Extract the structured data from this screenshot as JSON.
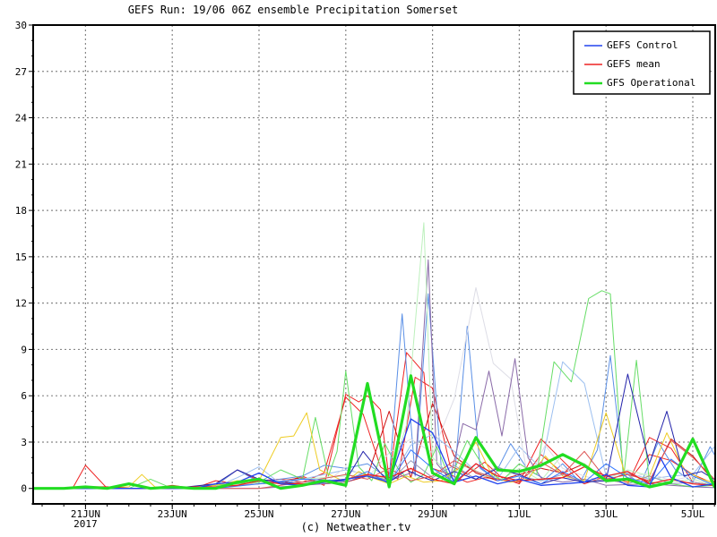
{
  "chart_data": {
    "type": "line",
    "title": "GEFS Run: 19/06 06Z ensemble Precipitation Somerset",
    "credit": "(c) Netweather.tv",
    "xlabel": "",
    "ylabel": "",
    "ylim": [
      -1,
      30
    ],
    "yticks": [
      0,
      3,
      6,
      9,
      12,
      15,
      18,
      21,
      24,
      27,
      30
    ],
    "x_unit": "days",
    "xlim": [
      0,
      16.5
    ],
    "xticks": [
      {
        "x": 1,
        "label": "21JUN",
        "sublabel": "2017"
      },
      {
        "x": 3,
        "label": "23JUN",
        "sublabel": ""
      },
      {
        "x": 5,
        "label": "25JUN",
        "sublabel": ""
      },
      {
        "x": 7,
        "label": "27JUN",
        "sublabel": ""
      },
      {
        "x": 9,
        "label": "29JUN",
        "sublabel": ""
      },
      {
        "x": 11,
        "label": "1JUL",
        "sublabel": ""
      },
      {
        "x": 13,
        "label": "3JUL",
        "sublabel": ""
      },
      {
        "x": 15,
        "label": "5JUL",
        "sublabel": ""
      }
    ],
    "grid": true,
    "legend_position": "top-right",
    "series": [
      {
        "name": "GEFS Control",
        "color": "#2244ee",
        "width": 1.3,
        "x": [
          -1.3,
          0,
          0.5,
          1,
          1.5,
          2,
          2.5,
          3,
          3.5,
          4,
          4.5,
          5,
          5.5,
          6,
          6.5,
          7,
          7.5,
          8,
          8.5,
          9,
          9.5,
          10,
          10.5,
          11,
          11.5,
          12,
          12.5,
          13,
          13.5,
          14,
          14.25,
          14.5,
          15,
          15.5,
          16,
          16.5
        ],
        "y": [
          0,
          0,
          0,
          0,
          0,
          0,
          0,
          0,
          0,
          0.3,
          0.4,
          1,
          0.3,
          0.2,
          0.4,
          0.6,
          0.8,
          0.4,
          4.5,
          3.6,
          0.4,
          0.8,
          0.3,
          0.6,
          0.2,
          0.3,
          0.4,
          0.9,
          0.2,
          0.1,
          2.0,
          0.7,
          0.1,
          0.3,
          0,
          0
        ]
      },
      {
        "name": "GEFS mean",
        "color": "#ee2222",
        "width": 1.3,
        "x": [
          -1.3,
          0,
          0.5,
          1,
          1.5,
          2,
          2.5,
          3,
          3.5,
          4,
          4.5,
          5,
          5.5,
          6,
          6.5,
          7,
          7.5,
          8,
          8.5,
          9,
          9.5,
          10,
          10.5,
          11,
          11.5,
          12,
          12.5,
          13,
          13.5,
          14,
          14.5,
          15,
          15.5,
          16,
          16.5
        ],
        "y": [
          0,
          0,
          0,
          0.1,
          0.1,
          0,
          0,
          0,
          0.1,
          0.1,
          0.2,
          0.5,
          0.3,
          0.3,
          0.4,
          0.6,
          0.9,
          0.7,
          1.3,
          0.6,
          0.3,
          1.6,
          0.8,
          0.5,
          0.6,
          0.7,
          1.4,
          0.8,
          1.1,
          0.3,
          0.6,
          0.3,
          0.2,
          0.2,
          0.1
        ]
      },
      {
        "name": "GFS Operational",
        "color": "#22dd22",
        "width": 3.2,
        "x": [
          -1.3,
          0,
          0.5,
          1,
          1.5,
          2,
          2.5,
          3,
          3.5,
          4,
          4.5,
          5,
          5.5,
          6,
          6.5,
          7,
          7.5,
          8,
          8.5,
          9,
          9.5,
          10,
          10.5,
          11,
          11.5,
          12,
          12.5,
          13,
          13.5,
          14,
          14.5,
          15,
          15.5,
          16,
          16.5
        ],
        "y": [
          0,
          0,
          0,
          0.1,
          0,
          0.3,
          0,
          0.1,
          0,
          0,
          0.4,
          0.6,
          0,
          0.2,
          0.5,
          0.2,
          6.8,
          0.1,
          7.3,
          1.0,
          0.3,
          3.3,
          1.2,
          1.1,
          1.5,
          2.2,
          1.5,
          0.5,
          0.6,
          0.1,
          0.4,
          3.2,
          0.1,
          0.1,
          0.1
        ]
      }
    ],
    "members": [
      {
        "color": "#ee2222",
        "x": [
          -1.3,
          0.3,
          0.7,
          1,
          1.5,
          2,
          2.5,
          3,
          3.5,
          4,
          4.5,
          5,
          5.5,
          6,
          6.5,
          7,
          7.3,
          7.5,
          7.8,
          8,
          8.4,
          8.8,
          9,
          9.4,
          9.8,
          10.2,
          10.6,
          11,
          11.5,
          12,
          12.5,
          13,
          13.5,
          14,
          14.5,
          15,
          15.5,
          16
        ],
        "y": [
          0,
          0,
          0,
          1.5,
          0,
          0.3,
          0,
          0.2,
          0,
          0.5,
          0.3,
          0.6,
          0.3,
          0.8,
          0.2,
          6.1,
          5.6,
          6.0,
          5.1,
          0.6,
          8.8,
          7.5,
          1.3,
          0.9,
          0.4,
          0.7,
          0.6,
          0.4,
          3.2,
          1.8,
          0.4,
          0.6,
          0.3,
          3.3,
          2.6,
          0.4,
          0.2,
          0
        ]
      },
      {
        "color": "#ee2222",
        "x": [
          -1.3,
          2,
          3,
          4,
          4.5,
          5,
          5.5,
          6,
          6.5,
          7,
          7.4,
          7.8,
          8.2,
          8.6,
          9,
          9.4,
          9.8,
          10.2,
          10.6,
          11,
          11.5,
          12,
          12.5,
          13,
          13.5,
          14,
          14.5,
          15,
          15.5,
          16
        ],
        "y": [
          0,
          0,
          0,
          0.2,
          1.2,
          0.5,
          0.6,
          0.4,
          1.0,
          5.9,
          4.8,
          1.4,
          0.6,
          7.2,
          6.5,
          1.5,
          0.9,
          1.7,
          0.7,
          0.3,
          2.2,
          1.0,
          0.3,
          0.8,
          0.4,
          2.2,
          1.8,
          0.9,
          0.3,
          0
        ]
      },
      {
        "color": "#cc1111",
        "x": [
          -1.3,
          3,
          4,
          5,
          6,
          6.5,
          7,
          7.5,
          8,
          8.5,
          9,
          9.5,
          10,
          10.5,
          11,
          11.5,
          12,
          12.5,
          13,
          13.5,
          14,
          14.5,
          15,
          15.5,
          16
        ],
        "y": [
          0,
          0,
          0.1,
          0.3,
          0.7,
          0.3,
          0.4,
          0.8,
          5.0,
          0.7,
          5.5,
          2.1,
          1.0,
          0.5,
          0.9,
          1.3,
          1.0,
          1.6,
          0.5,
          1.0,
          0.4,
          3.2,
          2.1,
          0.4,
          0
        ]
      },
      {
        "color": "#5a8fe6",
        "x": [
          -1.3,
          3,
          4,
          4.5,
          5,
          5.5,
          6,
          6.5,
          7,
          7.5,
          8,
          8.3,
          8.6,
          8.9,
          9.2,
          9.5,
          9.8,
          10.1,
          10.4,
          10.8,
          11.2,
          11.6,
          12,
          12.4,
          12.8,
          13.1,
          13.4,
          13.8,
          14.2,
          14.6,
          15,
          15.4,
          15.8,
          16.2,
          16.5
        ],
        "y": [
          0,
          0,
          0.2,
          1.2,
          0.4,
          0.6,
          0.8,
          1.5,
          1.3,
          1.6,
          0.6,
          11.3,
          0.8,
          12.6,
          1.4,
          0.5,
          10.5,
          1.3,
          0.7,
          2.9,
          1.2,
          0.6,
          1.6,
          0.4,
          2.5,
          8.6,
          1.1,
          0.3,
          3.0,
          1.2,
          0.4,
          2.7,
          0.6,
          0.3,
          0
        ]
      },
      {
        "color": "#9cbff0",
        "x": [
          -1.3,
          3,
          4,
          4.5,
          5,
          5.5,
          6,
          7,
          7.5,
          8,
          8.5,
          9,
          9.5,
          10,
          10.5,
          11,
          11.5,
          12,
          12.5,
          13,
          13.5,
          14,
          14.5,
          15,
          15.5,
          16,
          16.5
        ],
        "y": [
          0,
          0,
          0.1,
          0.7,
          1.4,
          0.3,
          0.6,
          1.2,
          0.9,
          0.4,
          2.8,
          3.5,
          2.4,
          1.1,
          0.6,
          2.7,
          1.3,
          8.2,
          6.8,
          0.8,
          1.0,
          0.6,
          0.8,
          0.9,
          2.7,
          0.4,
          0
        ]
      },
      {
        "color": "#dddde6",
        "x": [
          -1.3,
          4,
          5,
          6,
          6.5,
          7,
          7.5,
          8,
          8.5,
          9,
          9.5,
          10,
          10.4,
          10.8,
          11.2,
          11.6,
          12,
          12.5,
          13,
          13.5,
          14,
          14.5,
          15,
          15.5,
          16
        ],
        "y": [
          0,
          0,
          0.4,
          0.6,
          0.3,
          1.4,
          0.7,
          2.3,
          3.2,
          2.3,
          5.8,
          13.0,
          8.1,
          7.1,
          0.6,
          2.8,
          1.3,
          0.8,
          0.4,
          0.7,
          1.0,
          0.5,
          0.8,
          0.3,
          0
        ]
      },
      {
        "color": "#8a6aa8",
        "x": [
          -1.3,
          5,
          6,
          7,
          7.5,
          8,
          8.3,
          8.6,
          8.9,
          9.1,
          9.4,
          9.7,
          10,
          10.3,
          10.6,
          10.9,
          11.2,
          11.5,
          12,
          12.5,
          13,
          14,
          15,
          16
        ],
        "y": [
          0,
          0,
          0.2,
          0.4,
          0.9,
          0.5,
          0.8,
          1.1,
          14.8,
          1.6,
          0.6,
          4.2,
          3.8,
          7.6,
          3.4,
          8.4,
          2.0,
          0.7,
          0.4,
          0.6,
          0.2,
          0.3,
          0.1,
          0
        ]
      },
      {
        "color": "#bdf0bd",
        "x": [
          -1.3,
          4,
          5,
          6,
          7,
          7.5,
          8,
          8.4,
          8.8,
          9,
          9.4,
          9.8,
          10.2,
          10.6,
          11,
          11.5,
          12,
          12.5,
          13,
          13.5,
          14,
          14.5,
          15,
          15.5,
          16
        ],
        "y": [
          0,
          0,
          0.3,
          0.6,
          0.8,
          0.9,
          0.6,
          4.1,
          17.2,
          2.0,
          0.9,
          1.5,
          0.8,
          0.6,
          1.3,
          0.5,
          2.2,
          1.6,
          0.6,
          1.2,
          0.8,
          0.4,
          0.6,
          0.2,
          0
        ]
      },
      {
        "color": "#66dd66",
        "x": [
          -1.3,
          2,
          2.5,
          3,
          4,
          5,
          5.5,
          6,
          6.3,
          6.6,
          6.8,
          7,
          7.3,
          7.6,
          7.9,
          8.2,
          8.5,
          8.8,
          9.1,
          9.4,
          9.8,
          10.2,
          10.6,
          11,
          11.4,
          11.8,
          12.2,
          12.6,
          12.9,
          13.1,
          13.4,
          13.7,
          14,
          14.5,
          15,
          15.5,
          16
        ],
        "y": [
          0,
          0,
          0.6,
          0,
          0.2,
          0.4,
          1.2,
          0.6,
          4.6,
          0.8,
          2.4,
          7.6,
          1.4,
          0.5,
          2.9,
          1.3,
          0.4,
          0.9,
          2.7,
          0.6,
          3.1,
          1.3,
          0.5,
          1.6,
          0.9,
          8.2,
          6.9,
          12.3,
          12.8,
          12.6,
          0.6,
          8.3,
          0.4,
          0.3,
          0.1,
          0.2,
          0
        ]
      },
      {
        "color": "#eecc22",
        "x": [
          -1.3,
          1,
          2,
          2.3,
          2.6,
          3,
          4,
          4.5,
          5,
          5.5,
          5.8,
          6.1,
          6.4,
          6.7,
          7,
          7.3,
          7.6,
          8,
          8.4,
          8.8,
          9.2,
          9.6,
          10,
          10.4,
          10.8,
          11.2,
          11.6,
          12,
          12.5,
          13,
          13.5,
          14,
          14.4,
          14.8,
          15.2,
          15.6,
          16
        ],
        "y": [
          0,
          0,
          0.1,
          0.9,
          0.1,
          0,
          0.2,
          0.5,
          0.5,
          3.3,
          3.4,
          4.9,
          1.2,
          0.8,
          0.4,
          1.1,
          0.7,
          0.3,
          0.8,
          0.4,
          0.5,
          1.3,
          3.0,
          0.7,
          0.4,
          0.6,
          2.1,
          0.8,
          0.5,
          4.9,
          0.4,
          0.8,
          3.6,
          1.2,
          0.6,
          0.3,
          0
        ]
      },
      {
        "color": "#9999bb",
        "x": [
          -1.3,
          3,
          4,
          5,
          6,
          7,
          7.5,
          8,
          8.5,
          9,
          9.5,
          10,
          10.5,
          11,
          11.5,
          12,
          12.5,
          13,
          13.5,
          14,
          14.5,
          15,
          15.5,
          16
        ],
        "y": [
          0,
          0,
          0.1,
          0.3,
          0.4,
          0.6,
          0.9,
          0.4,
          1.8,
          0.7,
          1.5,
          0.6,
          1.4,
          0.8,
          0.5,
          0.9,
          0.4,
          0.6,
          0.3,
          0.8,
          0.3,
          0.4,
          0.2,
          0
        ]
      },
      {
        "color": "#2222aa",
        "x": [
          -1.3,
          3,
          4,
          4.5,
          5,
          5.5,
          6,
          7,
          7.4,
          7.8,
          8,
          8.4,
          8.7,
          9,
          9.5,
          10,
          10.5,
          11,
          11.5,
          12,
          12.5,
          13,
          13.5,
          14,
          14.4,
          14.8,
          15.2,
          15.6,
          16,
          16.5
        ],
        "y": [
          0,
          0,
          0.3,
          1.2,
          0.6,
          0.4,
          0.3,
          0.5,
          2.4,
          1.0,
          0.4,
          1.2,
          0.8,
          0.5,
          1.1,
          0.6,
          1.3,
          0.9,
          0.3,
          0.7,
          0.4,
          0.5,
          7.4,
          1.6,
          5.0,
          0.8,
          1.1,
          0.4,
          0.2,
          7.5
        ]
      },
      {
        "color": "#dd5555",
        "x": [
          -1.3,
          5,
          6,
          7,
          7.5,
          8,
          8.5,
          9,
          9.5,
          10,
          10.5,
          11,
          11.5,
          12,
          12.5,
          13,
          13.5,
          14,
          14.5,
          15,
          15.5,
          16,
          16.5
        ],
        "y": [
          0,
          0,
          0.4,
          0.9,
          0.6,
          1.3,
          0.5,
          0.8,
          1.8,
          1.1,
          0.6,
          0.4,
          1.7,
          0.9,
          2.4,
          0.6,
          0.9,
          0.5,
          3.1,
          2.0,
          0.6,
          0.3,
          1.2
        ]
      },
      {
        "color": "#3377ff",
        "x": [
          -1.3,
          4,
          5,
          6,
          7,
          7.5,
          8,
          8.5,
          9,
          9.5,
          10,
          10.5,
          11,
          11.5,
          12,
          12.5,
          13,
          13.5,
          14,
          14.5,
          15,
          15.5,
          16
        ],
        "y": [
          0,
          0,
          0.3,
          0.6,
          0.5,
          1.1,
          0.3,
          2.5,
          1.3,
          0.4,
          1.6,
          0.5,
          0.8,
          0.3,
          1.1,
          0.4,
          1.6,
          0.7,
          0.3,
          1.9,
          0.8,
          0.2,
          0
        ]
      }
    ]
  }
}
